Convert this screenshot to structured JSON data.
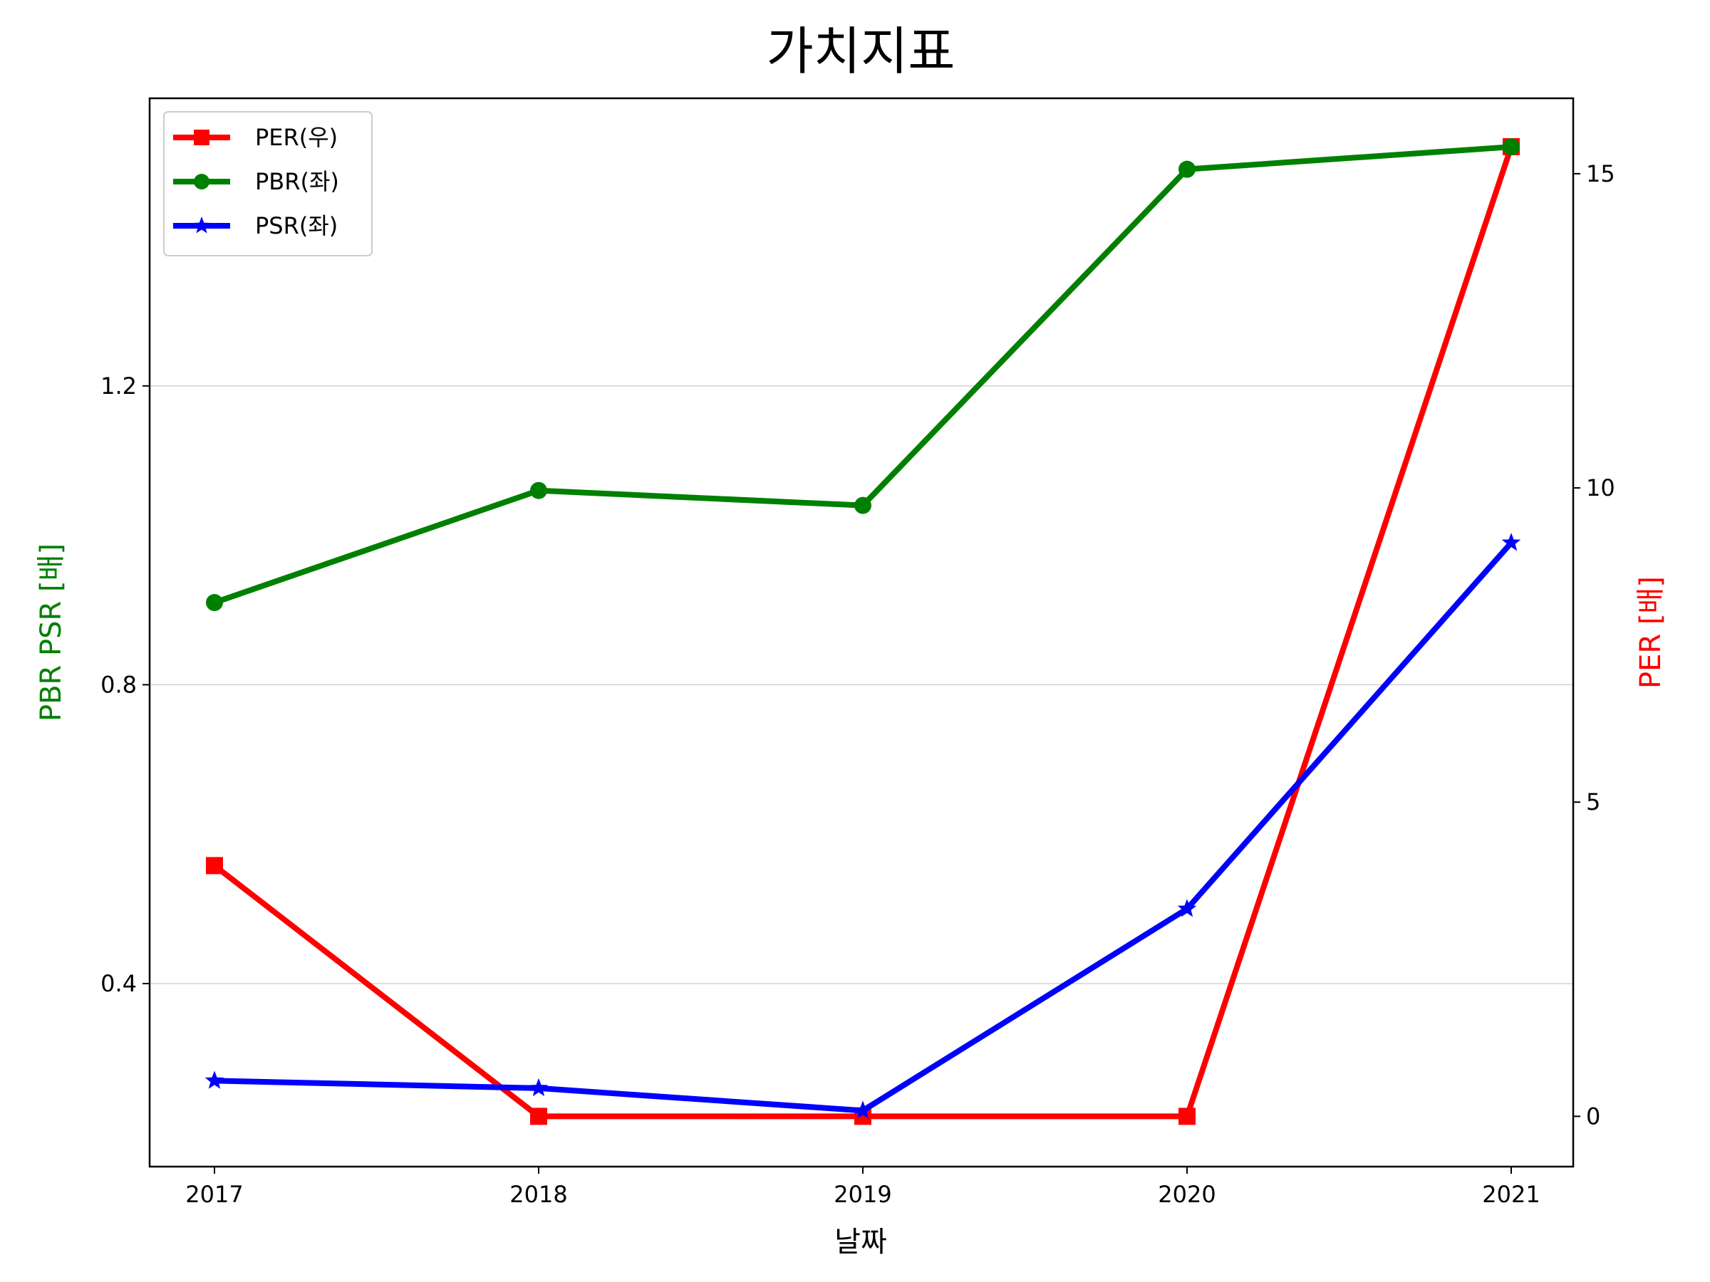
{
  "chart_data": {
    "type": "line",
    "title": "가치지표",
    "xlabel": "날짜",
    "ylabel_left": "PBR PSR [배]",
    "ylabel_right": "PER [배]",
    "categories": [
      "2017",
      "2018",
      "2019",
      "2020",
      "2021"
    ],
    "y_left": {
      "lim": [
        0.155,
        1.585
      ],
      "ticks": [
        0.4,
        0.8,
        1.2
      ],
      "tick_labels": [
        "0.4",
        "0.8",
        "1.2"
      ]
    },
    "y_right": {
      "lim": [
        -0.8,
        16.2
      ],
      "ticks": [
        0,
        5,
        10,
        15
      ],
      "tick_labels": [
        "0",
        "5",
        "10",
        "15"
      ]
    },
    "grid": "horizontal at left-axis ticks",
    "legend_position": "top-left",
    "series": [
      {
        "name": "PER(우)",
        "axis": "right",
        "marker": "square",
        "color": "#ff0000",
        "values": [
          3.99,
          0.0,
          0.0,
          0.0,
          15.43
        ]
      },
      {
        "name": "PBR(좌)",
        "axis": "left",
        "marker": "circle",
        "color": "#008000",
        "values": [
          0.91,
          1.06,
          1.04,
          1.49,
          1.52
        ]
      },
      {
        "name": "PSR(좌)",
        "axis": "left",
        "marker": "star",
        "color": "#0000ff",
        "values": [
          0.27,
          0.26,
          0.23,
          0.5,
          0.99
        ]
      }
    ]
  }
}
